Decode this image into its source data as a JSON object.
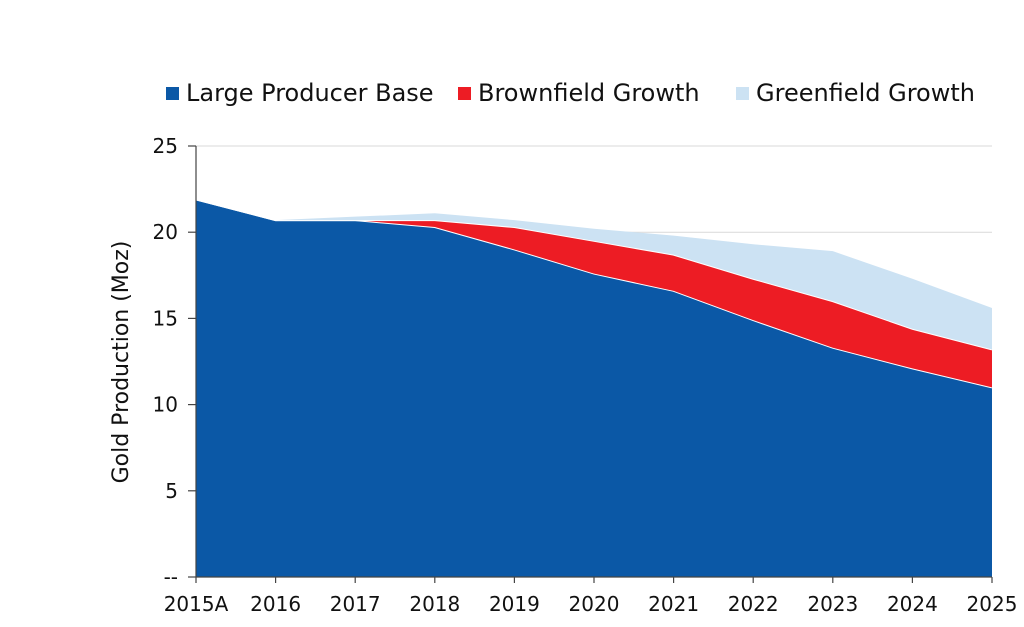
{
  "chart_data": {
    "type": "area",
    "stacked": true,
    "categories": [
      "2015A",
      "2016",
      "2017",
      "2018",
      "2019",
      "2020",
      "2021",
      "2022",
      "2023",
      "2024",
      "2025"
    ],
    "series": [
      {
        "name": "Large Producer Base",
        "color": "#0b58a6",
        "values": [
          21.9,
          20.7,
          20.7,
          20.3,
          19.0,
          17.6,
          16.6,
          14.9,
          13.3,
          12.1,
          11.0
        ]
      },
      {
        "name": "Brownfield Growth",
        "color": "#ed1c24",
        "values": [
          0.0,
          0.0,
          0.0,
          0.4,
          1.3,
          1.9,
          2.1,
          2.4,
          2.7,
          2.3,
          2.2
        ]
      },
      {
        "name": "Greenfield Growth",
        "color": "#cce2f3",
        "values": [
          0.0,
          0.0,
          0.2,
          0.4,
          0.4,
          0.7,
          1.1,
          2.0,
          2.9,
          2.9,
          2.4
        ]
      }
    ],
    "ylabel": "Gold Production (Moz)",
    "ylim": [
      0,
      25
    ],
    "yticks": [
      0,
      5,
      10,
      15,
      20,
      25
    ],
    "ytick_labels": [
      "--",
      "5",
      "10",
      "15",
      "20",
      "25"
    ],
    "grid": true,
    "legend_position": "top"
  }
}
